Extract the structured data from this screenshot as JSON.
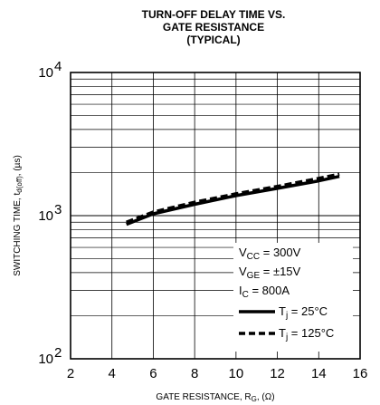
{
  "chart_data": {
    "type": "line",
    "title": [
      "TURN-OFF DELAY TIME VS.",
      "GATE RESISTANCE",
      "(TYPICAL)"
    ],
    "xlabel": {
      "main": "GATE RESISTANCE, R",
      "sub": "G",
      "unit": ", (Ω)"
    },
    "ylabel": {
      "main": "SWITCHING TIME, t",
      "sub": "d(off)",
      "unit": ", (µs)"
    },
    "x_scale": "linear",
    "y_scale": "log",
    "xlim": [
      2,
      16
    ],
    "ylim": [
      100,
      10000
    ],
    "x_ticks": [
      "2",
      "4",
      "6",
      "8",
      "10",
      "12",
      "14",
      "16"
    ],
    "y_ticks": [
      {
        "base": "10",
        "exp": "4",
        "value": 10000
      },
      {
        "base": "10",
        "exp": "3",
        "value": 1000
      },
      {
        "base": "10",
        "exp": "2",
        "value": 100
      }
    ],
    "grid": true,
    "legend_position": "bottom-right",
    "conditions": [
      {
        "main": "V",
        "sub": "CC",
        "rest": " = 300V"
      },
      {
        "main": "V",
        "sub": "GE",
        "rest": " = ±15V"
      },
      {
        "main": "I",
        "sub": "C",
        "rest": " = 800A"
      }
    ],
    "series": [
      {
        "name": {
          "main": "T",
          "sub": "j",
          "rest": " = 25°C"
        },
        "style": "solid",
        "x": [
          4.7,
          6,
          8,
          10,
          12,
          14,
          15
        ],
        "y": [
          870,
          1030,
          1200,
          1380,
          1550,
          1750,
          1880
        ]
      },
      {
        "name": {
          "main": "T",
          "sub": "j",
          "rest": " = 125°C"
        },
        "style": "dashed",
        "x": [
          4.7,
          6,
          8,
          10,
          12,
          14,
          15
        ],
        "y": [
          900,
          1060,
          1240,
          1420,
          1600,
          1820,
          1950
        ]
      }
    ]
  }
}
